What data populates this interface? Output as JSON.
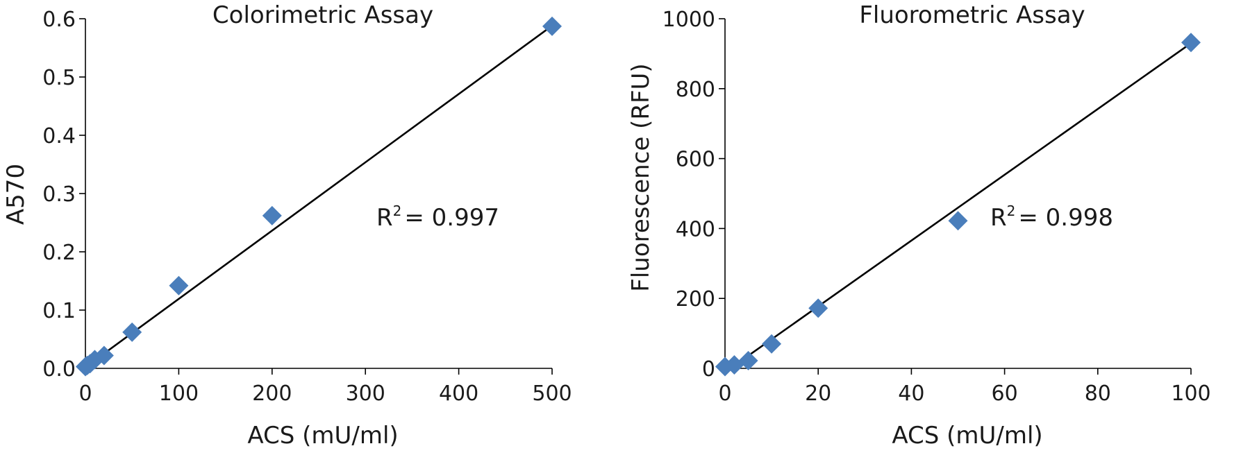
{
  "chart_data": [
    {
      "type": "scatter",
      "title": "Colorimetric Assay",
      "xlabel": "ACS (mU/ml)",
      "ylabel": "A570",
      "xlim": [
        0,
        500
      ],
      "ylim": [
        0,
        0.6
      ],
      "xticks": [
        "0",
        "100",
        "200",
        "300",
        "400",
        "500"
      ],
      "yticks": [
        "0.0",
        "0.1",
        "0.2",
        "0.3",
        "0.4",
        "0.5",
        "0.6"
      ],
      "grid": false,
      "marker_color": "#4A7EBB",
      "series": [
        {
          "marker": "diamond",
          "points": [
            {
              "x": 0,
              "y": 0.003
            },
            {
              "x": 2,
              "y": 0.005
            },
            {
              "x": 5,
              "y": 0.008
            },
            {
              "x": 10,
              "y": 0.015
            },
            {
              "x": 20,
              "y": 0.022
            },
            {
              "x": 50,
              "y": 0.062
            },
            {
              "x": 100,
              "y": 0.142
            },
            {
              "x": 200,
              "y": 0.262
            },
            {
              "x": 500,
              "y": 0.587
            }
          ]
        }
      ],
      "trendline": {
        "x": [
          0,
          500
        ],
        "y": [
          0.002,
          0.588
        ]
      },
      "annotation": {
        "base": "R",
        "sup": "2",
        "text": "= 0.997"
      }
    },
    {
      "type": "scatter",
      "title": "Fluorometric Assay",
      "xlabel": "ACS (mU/ml)",
      "ylabel": "Fluorescence (RFU)",
      "xlim": [
        0,
        100
      ],
      "ylim": [
        0,
        1000
      ],
      "xticks": [
        "0",
        "20",
        "40",
        "60",
        "80",
        "100"
      ],
      "yticks": [
        "0",
        "200",
        "400",
        "600",
        "800",
        "1000"
      ],
      "grid": false,
      "marker_color": "#4A7EBB",
      "series": [
        {
          "marker": "diamond",
          "points": [
            {
              "x": 0,
              "y": 5
            },
            {
              "x": 2,
              "y": 10
            },
            {
              "x": 5,
              "y": 22
            },
            {
              "x": 10,
              "y": 70
            },
            {
              "x": 20,
              "y": 172
            },
            {
              "x": 50,
              "y": 422
            },
            {
              "x": 100,
              "y": 932
            }
          ]
        }
      ],
      "trendline": {
        "x": [
          2,
          100
        ],
        "y": [
          8,
          930
        ]
      },
      "annotation": {
        "base": "R",
        "sup": "2",
        "text": "= 0.998"
      }
    }
  ]
}
